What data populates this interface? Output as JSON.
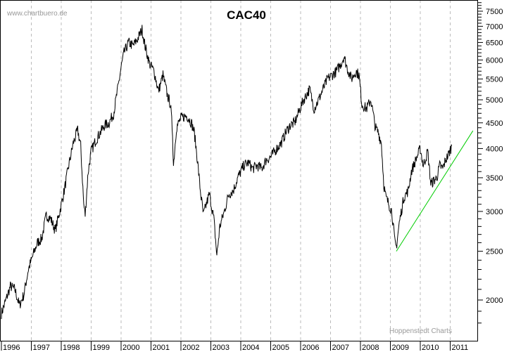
{
  "chart_data": {
    "type": "line",
    "title": "CAC40",
    "watermark_top": "www.chartbuero.de",
    "watermark_bottom": "Hoppenstedt Charts",
    "xlabel": "",
    "ylabel": "",
    "yscale": "log",
    "ylim": [
      1750,
      7900
    ],
    "xlim": [
      1996,
      2011.9
    ],
    "x_ticks": [
      "1996",
      "1997",
      "1998",
      "1999",
      "2000",
      "2001",
      "2002",
      "2003",
      "2004",
      "2005",
      "2006",
      "2007",
      "2008",
      "2009",
      "2010",
      "2011"
    ],
    "y_ticks": [
      2000,
      2500,
      3000,
      3500,
      4000,
      4500,
      5000,
      5500,
      6000,
      6500,
      7000,
      7500
    ],
    "grid": "vertical dashed at years",
    "series": [
      {
        "name": "CAC40",
        "color": "#000000",
        "points": [
          [
            1996.0,
            1880
          ],
          [
            1996.15,
            2000
          ],
          [
            1996.3,
            2130
          ],
          [
            1996.45,
            2100
          ],
          [
            1996.6,
            1950
          ],
          [
            1996.75,
            2050
          ],
          [
            1996.9,
            2300
          ],
          [
            1997.05,
            2450
          ],
          [
            1997.2,
            2600
          ],
          [
            1997.35,
            2650
          ],
          [
            1997.5,
            2950
          ],
          [
            1997.65,
            2900
          ],
          [
            1997.8,
            2750
          ],
          [
            1997.95,
            3000
          ],
          [
            1998.1,
            3300
          ],
          [
            1998.25,
            3700
          ],
          [
            1998.4,
            4100
          ],
          [
            1998.55,
            4350
          ],
          [
            1998.65,
            4050
          ],
          [
            1998.75,
            3100
          ],
          [
            1998.8,
            2950
          ],
          [
            1998.9,
            3600
          ],
          [
            1999.0,
            3950
          ],
          [
            1999.15,
            4150
          ],
          [
            1999.3,
            4300
          ],
          [
            1999.45,
            4450
          ],
          [
            1999.6,
            4500
          ],
          [
            1999.75,
            4700
          ],
          [
            1999.9,
            5300
          ],
          [
            2000.0,
            5800
          ],
          [
            2000.1,
            6200
          ],
          [
            2000.25,
            6500
          ],
          [
            2000.4,
            6400
          ],
          [
            2000.55,
            6600
          ],
          [
            2000.7,
            6900
          ],
          [
            2000.8,
            6400
          ],
          [
            2000.95,
            5900
          ],
          [
            2001.1,
            5700
          ],
          [
            2001.25,
            5200
          ],
          [
            2001.4,
            5600
          ],
          [
            2001.55,
            5100
          ],
          [
            2001.65,
            4900
          ],
          [
            2001.72,
            4300
          ],
          [
            2001.75,
            3700
          ],
          [
            2001.85,
            4400
          ],
          [
            2002.0,
            4600
          ],
          [
            2002.2,
            4650
          ],
          [
            2002.35,
            4500
          ],
          [
            2002.45,
            4300
          ],
          [
            2002.55,
            3800
          ],
          [
            2002.65,
            3300
          ],
          [
            2002.75,
            2950
          ],
          [
            2002.85,
            3100
          ],
          [
            2002.95,
            3250
          ],
          [
            2003.1,
            2900
          ],
          [
            2003.2,
            2450
          ],
          [
            2003.3,
            2800
          ],
          [
            2003.45,
            3000
          ],
          [
            2003.6,
            3250
          ],
          [
            2003.75,
            3300
          ],
          [
            2003.9,
            3500
          ],
          [
            2004.1,
            3700
          ],
          [
            2004.25,
            3750
          ],
          [
            2004.4,
            3650
          ],
          [
            2004.55,
            3700
          ],
          [
            2004.7,
            3650
          ],
          [
            2004.85,
            3800
          ],
          [
            2005.0,
            3850
          ],
          [
            2005.2,
            4000
          ],
          [
            2005.35,
            4100
          ],
          [
            2005.5,
            4300
          ],
          [
            2005.65,
            4450
          ],
          [
            2005.8,
            4500
          ],
          [
            2005.95,
            4750
          ],
          [
            2006.1,
            5000
          ],
          [
            2006.3,
            5250
          ],
          [
            2006.45,
            4800
          ],
          [
            2006.6,
            5000
          ],
          [
            2006.75,
            5250
          ],
          [
            2006.9,
            5500
          ],
          [
            2007.05,
            5600
          ],
          [
            2007.2,
            5700
          ],
          [
            2007.35,
            5900
          ],
          [
            2007.45,
            6100
          ],
          [
            2007.55,
            5800
          ],
          [
            2007.7,
            5500
          ],
          [
            2007.85,
            5700
          ],
          [
            2007.95,
            5600
          ],
          [
            2008.05,
            4900
          ],
          [
            2008.2,
            4800
          ],
          [
            2008.35,
            5000
          ],
          [
            2008.5,
            4400
          ],
          [
            2008.6,
            4300
          ],
          [
            2008.7,
            4100
          ],
          [
            2008.78,
            3400
          ],
          [
            2008.85,
            3200
          ],
          [
            2008.95,
            3100
          ],
          [
            2009.05,
            3000
          ],
          [
            2009.15,
            2600
          ],
          [
            2009.2,
            2550
          ],
          [
            2009.3,
            2850
          ],
          [
            2009.45,
            3200
          ],
          [
            2009.6,
            3300
          ],
          [
            2009.7,
            3600
          ],
          [
            2009.85,
            3800
          ],
          [
            2010.0,
            4000
          ],
          [
            2010.1,
            3700
          ],
          [
            2010.25,
            3950
          ],
          [
            2010.35,
            3400
          ],
          [
            2010.45,
            3450
          ],
          [
            2010.55,
            3500
          ],
          [
            2010.65,
            3700
          ],
          [
            2010.75,
            3650
          ],
          [
            2010.85,
            3800
          ],
          [
            2010.95,
            3900
          ],
          [
            2011.05,
            4050
          ]
        ]
      },
      {
        "name": "Trendline",
        "color": "#00cc00",
        "points": [
          [
            2009.2,
            2500
          ],
          [
            2011.76,
            4340
          ]
        ]
      }
    ]
  }
}
